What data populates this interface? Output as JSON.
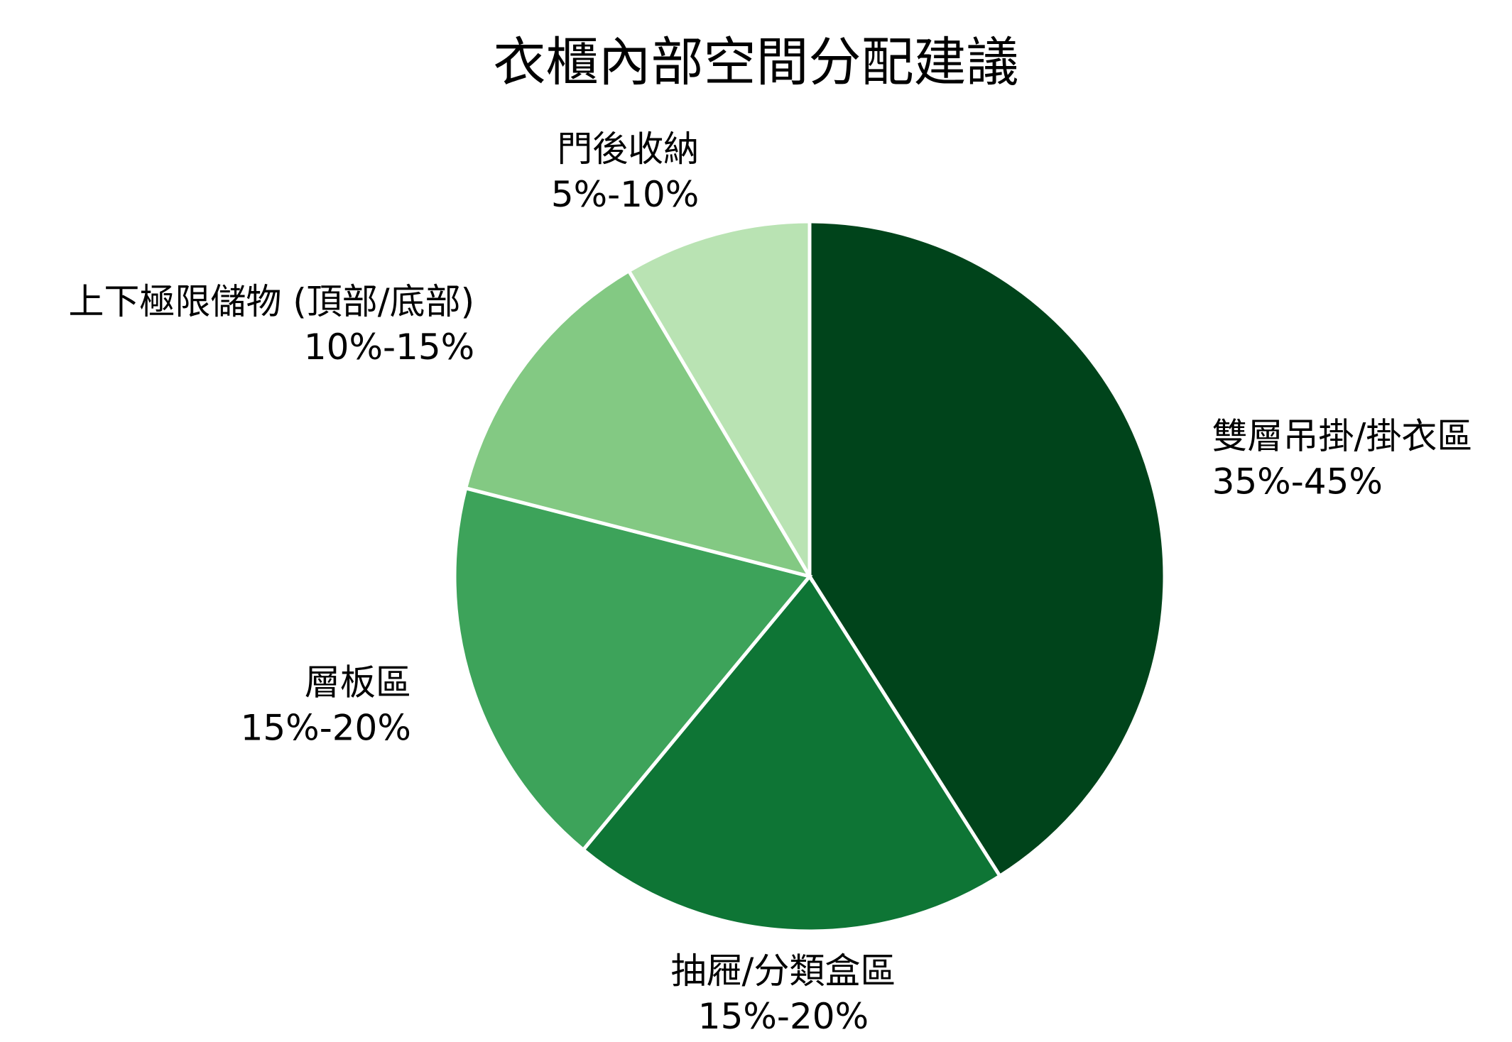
{
  "chart_data": {
    "type": "pie",
    "title": "衣櫃內部空間分配建議",
    "slices": [
      {
        "label": "雙層吊掛/掛衣區",
        "range_text": "35%-45%",
        "value": 41,
        "color": "#00441b"
      },
      {
        "label": "抽屜/分類盒區",
        "range_text": "15%-20%",
        "value": 20,
        "color": "#0e7535"
      },
      {
        "label": "層板區",
        "range_text": "15%-20%",
        "value": 18,
        "color": "#3da35a"
      },
      {
        "label": "上下極限儲物 (頂部/底部)",
        "range_text": "10%-15%",
        "value": 12.5,
        "color": "#83c983"
      },
      {
        "label": "門後收納",
        "range_text": "5%-10%",
        "value": 8.5,
        "color": "#b9e3b3"
      }
    ],
    "start_angle": "top",
    "direction": "clockwise",
    "legend": "none"
  }
}
